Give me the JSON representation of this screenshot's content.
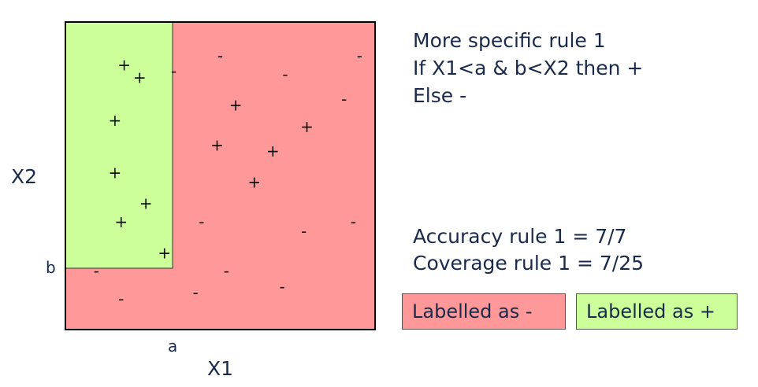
{
  "colors": {
    "negative_region": "#ff9999",
    "positive_region": "#ccff99",
    "frame": "#000000"
  },
  "axes": {
    "x_label": "X1",
    "y_label": "X2",
    "x_threshold_label": "a",
    "y_threshold_label": "b"
  },
  "rule": {
    "title": "More specific rule 1",
    "condition": "If X1<a & b<X2 then +",
    "else": "Else -"
  },
  "metrics": {
    "accuracy": "Accuracy rule 1 = 7/7",
    "coverage": "Coverage rule 1 = 7/25"
  },
  "legend": {
    "negative_label": "Labelled as -",
    "positive_label": "Labelled as +"
  },
  "points": [
    {
      "x1": 0.19,
      "x2": 0.86,
      "sign": "+"
    },
    {
      "x1": 0.24,
      "x2": 0.82,
      "sign": "+"
    },
    {
      "x1": 0.16,
      "x2": 0.68,
      "sign": "+"
    },
    {
      "x1": 0.16,
      "x2": 0.51,
      "sign": "+"
    },
    {
      "x1": 0.26,
      "x2": 0.41,
      "sign": "+"
    },
    {
      "x1": 0.18,
      "x2": 0.35,
      "sign": "+"
    },
    {
      "x1": 0.32,
      "x2": 0.25,
      "sign": "+"
    },
    {
      "x1": 0.35,
      "x2": 0.84,
      "sign": "-"
    },
    {
      "x1": 0.5,
      "x2": 0.89,
      "sign": "-"
    },
    {
      "x1": 0.71,
      "x2": 0.83,
      "sign": "-"
    },
    {
      "x1": 0.95,
      "x2": 0.89,
      "sign": "-"
    },
    {
      "x1": 0.9,
      "x2": 0.75,
      "sign": "-"
    },
    {
      "x1": 0.55,
      "x2": 0.73,
      "sign": "+"
    },
    {
      "x1": 0.78,
      "x2": 0.66,
      "sign": "+"
    },
    {
      "x1": 0.49,
      "x2": 0.6,
      "sign": "+"
    },
    {
      "x1": 0.67,
      "x2": 0.58,
      "sign": "+"
    },
    {
      "x1": 0.61,
      "x2": 0.48,
      "sign": "+"
    },
    {
      "x1": 0.44,
      "x2": 0.35,
      "sign": "-"
    },
    {
      "x1": 0.77,
      "x2": 0.32,
      "sign": "-"
    },
    {
      "x1": 0.93,
      "x2": 0.35,
      "sign": "-"
    },
    {
      "x1": 0.1,
      "x2": 0.19,
      "sign": "-"
    },
    {
      "x1": 0.52,
      "x2": 0.19,
      "sign": "-"
    },
    {
      "x1": 0.7,
      "x2": 0.14,
      "sign": "-"
    },
    {
      "x1": 0.18,
      "x2": 0.1,
      "sign": "-"
    },
    {
      "x1": 0.42,
      "x2": 0.12,
      "sign": "-"
    }
  ]
}
